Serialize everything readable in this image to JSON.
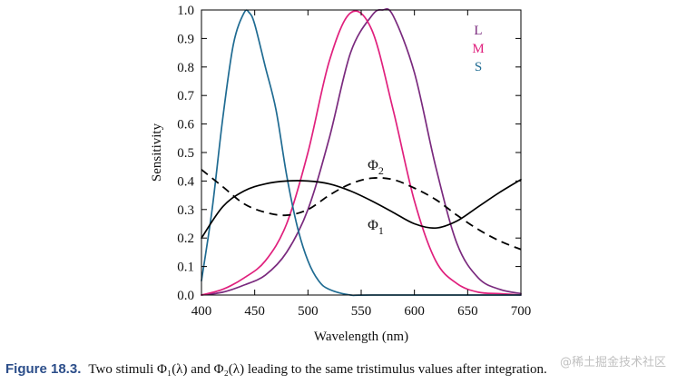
{
  "chart_data": {
    "type": "line",
    "xlabel": "Wavelength (nm)",
    "ylabel": "Sensitivity",
    "xlim": [
      400,
      700
    ],
    "ylim": [
      0,
      1.0
    ],
    "xticks": [
      "400",
      "450",
      "500",
      "550",
      "600",
      "650",
      "700"
    ],
    "yticks": [
      "0.0",
      "0.1",
      "0.2",
      "0.3",
      "0.4",
      "0.5",
      "0.6",
      "0.7",
      "0.8",
      "0.9",
      "1.0"
    ],
    "grid": false,
    "legend_placement": "top-right",
    "series": [
      {
        "name": "L",
        "color": "#7a2a7e",
        "style": "solid",
        "x": [
          400,
          420,
          440,
          460,
          480,
          500,
          520,
          540,
          560,
          570,
          580,
          600,
          620,
          640,
          660,
          680,
          700
        ],
        "y": [
          0.0,
          0.01,
          0.035,
          0.07,
          0.15,
          0.3,
          0.55,
          0.85,
          0.98,
          1.0,
          0.98,
          0.78,
          0.45,
          0.18,
          0.06,
          0.02,
          0.005
        ]
      },
      {
        "name": "M",
        "color": "#e0207d",
        "style": "solid",
        "x": [
          400,
          420,
          440,
          460,
          480,
          500,
          520,
          540,
          560,
          580,
          600,
          620,
          640,
          660,
          680,
          700
        ],
        "y": [
          0.0,
          0.02,
          0.06,
          0.12,
          0.25,
          0.5,
          0.82,
          0.99,
          0.93,
          0.65,
          0.33,
          0.12,
          0.04,
          0.01,
          0.005,
          0.0
        ]
      },
      {
        "name": "S",
        "color": "#1f6b92",
        "style": "solid",
        "x": [
          400,
          410,
          420,
          430,
          440,
          445,
          450,
          460,
          470,
          480,
          490,
          500,
          510,
          520,
          540,
          560,
          700
        ],
        "y": [
          0.05,
          0.3,
          0.62,
          0.88,
          0.99,
          0.99,
          0.95,
          0.8,
          0.65,
          0.42,
          0.24,
          0.12,
          0.05,
          0.02,
          0.0,
          0.0,
          0.0
        ]
      },
      {
        "name": "Φ1",
        "color": "#000000",
        "style": "solid",
        "x": [
          400,
          420,
          440,
          460,
          480,
          500,
          520,
          540,
          560,
          580,
          600,
          620,
          640,
          660,
          680,
          700
        ],
        "y": [
          0.2,
          0.31,
          0.365,
          0.39,
          0.4,
          0.4,
          0.39,
          0.365,
          0.33,
          0.29,
          0.25,
          0.235,
          0.26,
          0.31,
          0.36,
          0.405
        ]
      },
      {
        "name": "Φ2",
        "color": "#000000",
        "style": "dashed",
        "x": [
          400,
          420,
          440,
          460,
          480,
          500,
          520,
          540,
          560,
          580,
          600,
          620,
          640,
          660,
          680,
          700
        ],
        "y": [
          0.44,
          0.38,
          0.32,
          0.29,
          0.28,
          0.3,
          0.35,
          0.39,
          0.41,
          0.405,
          0.375,
          0.335,
          0.28,
          0.23,
          0.19,
          0.16
        ]
      }
    ],
    "legend": [
      {
        "label": "L",
        "color": "#7a2a7e"
      },
      {
        "label": "M",
        "color": "#e0207d"
      },
      {
        "label": "S",
        "color": "#1f6b92"
      }
    ],
    "annotations": [
      {
        "symbol": "Φ",
        "sub": "2",
        "x": 568,
        "y": 0.455
      },
      {
        "symbol": "Φ",
        "sub": "1",
        "x": 568,
        "y": 0.245
      }
    ]
  },
  "caption": {
    "label": "Figure 18.3.",
    "text": "Two stimuli Φ₁(λ) and Φ₂(λ) leading to the same tristimulus values after integration."
  },
  "watermark": "@稀土掘金技术社区"
}
